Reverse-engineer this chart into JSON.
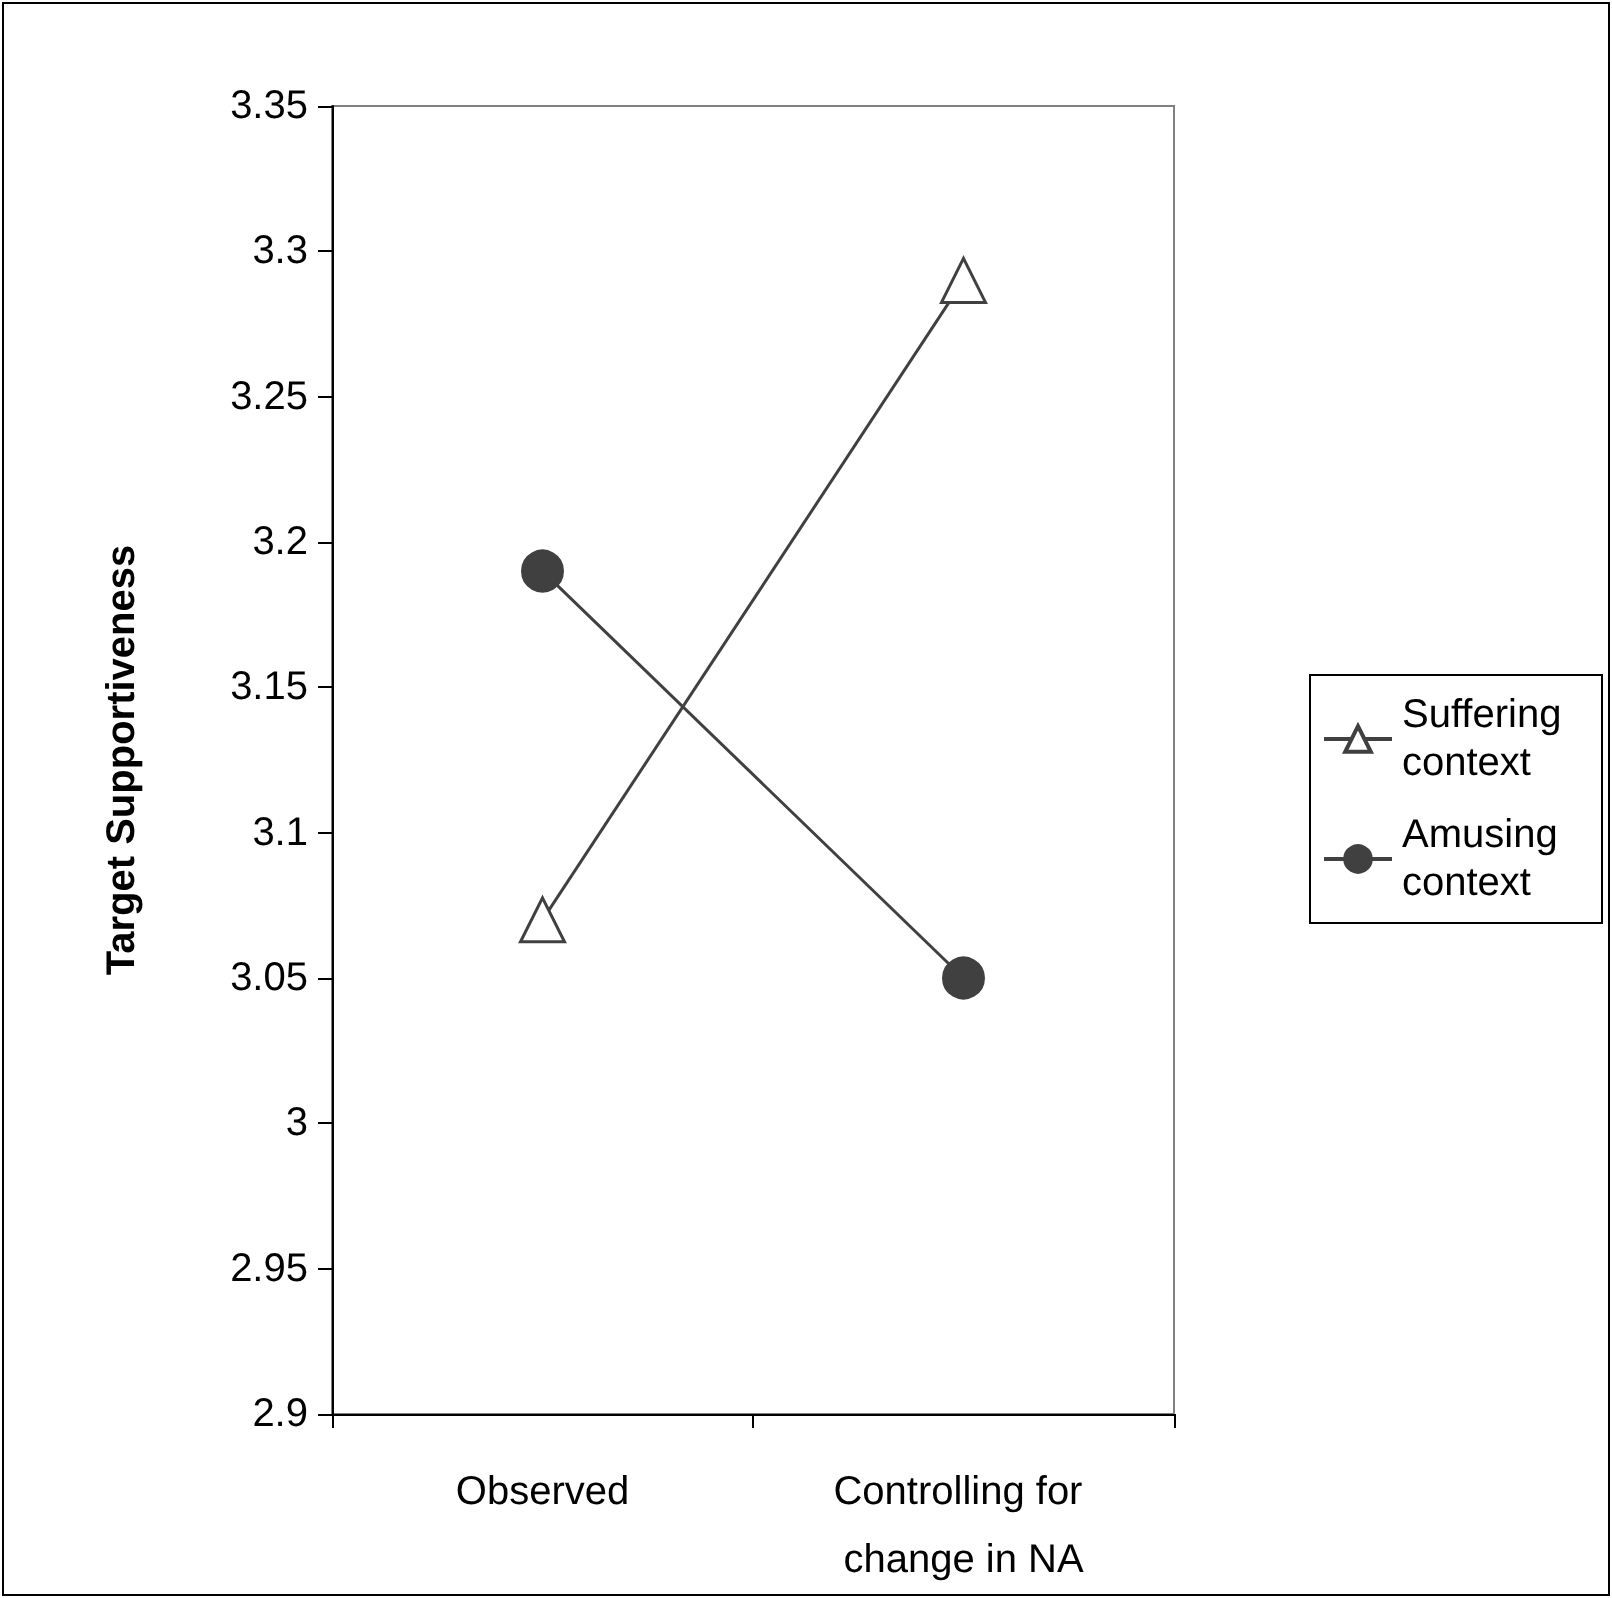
{
  "chart_data": {
    "type": "line",
    "ylabel": "Target Supportiveness",
    "categories": [
      "Observed",
      "Controlling for change in NA"
    ],
    "series": [
      {
        "name": "Suffering context",
        "color": "#404040",
        "marker": "triangle",
        "values": [
          3.07,
          3.29
        ]
      },
      {
        "name": "Amusing context",
        "color": "#404040",
        "marker": "circle",
        "values": [
          3.19,
          3.05
        ]
      }
    ],
    "ylim": [
      2.9,
      3.35
    ],
    "yticks": [
      2.9,
      2.95,
      3,
      3.05,
      3.1,
      3.15,
      3.2,
      3.25,
      3.3,
      3.35
    ],
    "grid": false,
    "legend": "right"
  }
}
